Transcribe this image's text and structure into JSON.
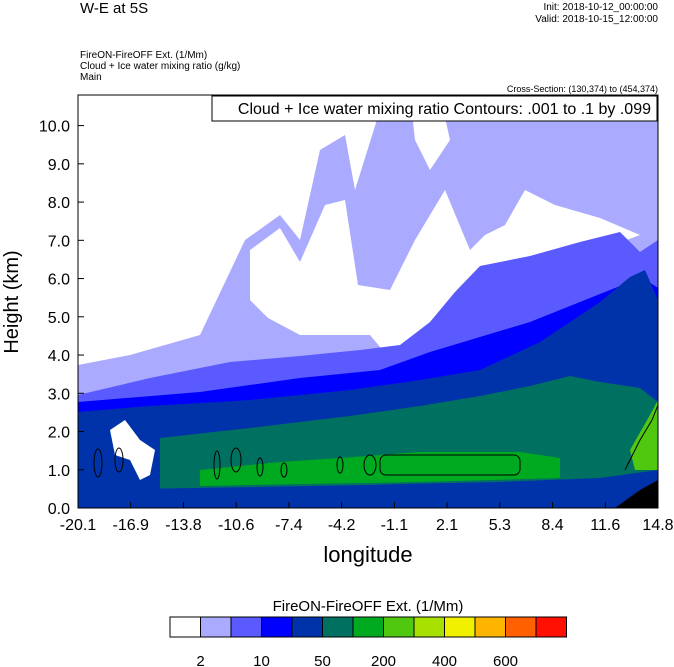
{
  "header": {
    "title": "W-E at 5S",
    "init": "Init: 2018-10-12_00:00:00",
    "valid": "Valid: 2018-10-15_12:00:00",
    "fields": [
      "FireON-FireOFF Ext.   (1/Mm)",
      "Cloud + Ice water mixing ratio   (g/kg)",
      "Main"
    ],
    "cross_section": "Cross-Section: (130,374) to (454,374)"
  },
  "chart_data": {
    "type": "heatmap",
    "title": "Cloud + Ice water mixing ratio Contours: .001 to .1 by .099",
    "xlabel": "longitude",
    "ylabel": "Height (km)",
    "xlim": [
      -20.1,
      14.8
    ],
    "ylim": [
      0,
      10.8
    ],
    "xticks": [
      "-20.1",
      "-16.9",
      "-13.8",
      "-10.6",
      "-7.4",
      "-4.2",
      "-1.1",
      "2.1",
      "5.3",
      "8.4",
      "11.6",
      "14.8"
    ],
    "yticks": [
      "0.0",
      "1.0",
      "2.0",
      "3.0",
      "4.0",
      "5.0",
      "6.0",
      "7.0",
      "8.0",
      "9.0",
      "10.0"
    ],
    "colorbar": {
      "title": "FireON-FireOFF Ext.  (1/Mm)",
      "colors": [
        "#ffffff",
        "#aaaaff",
        "#5a5aff",
        "#0000ff",
        "#0033aa",
        "#007060",
        "#00aa20",
        "#50c810",
        "#a8e000",
        "#f0f000",
        "#ffb400",
        "#ff6000",
        "#ff1000"
      ],
      "labels": [
        "2",
        "10",
        "50",
        "200",
        "400",
        "600"
      ]
    }
  }
}
